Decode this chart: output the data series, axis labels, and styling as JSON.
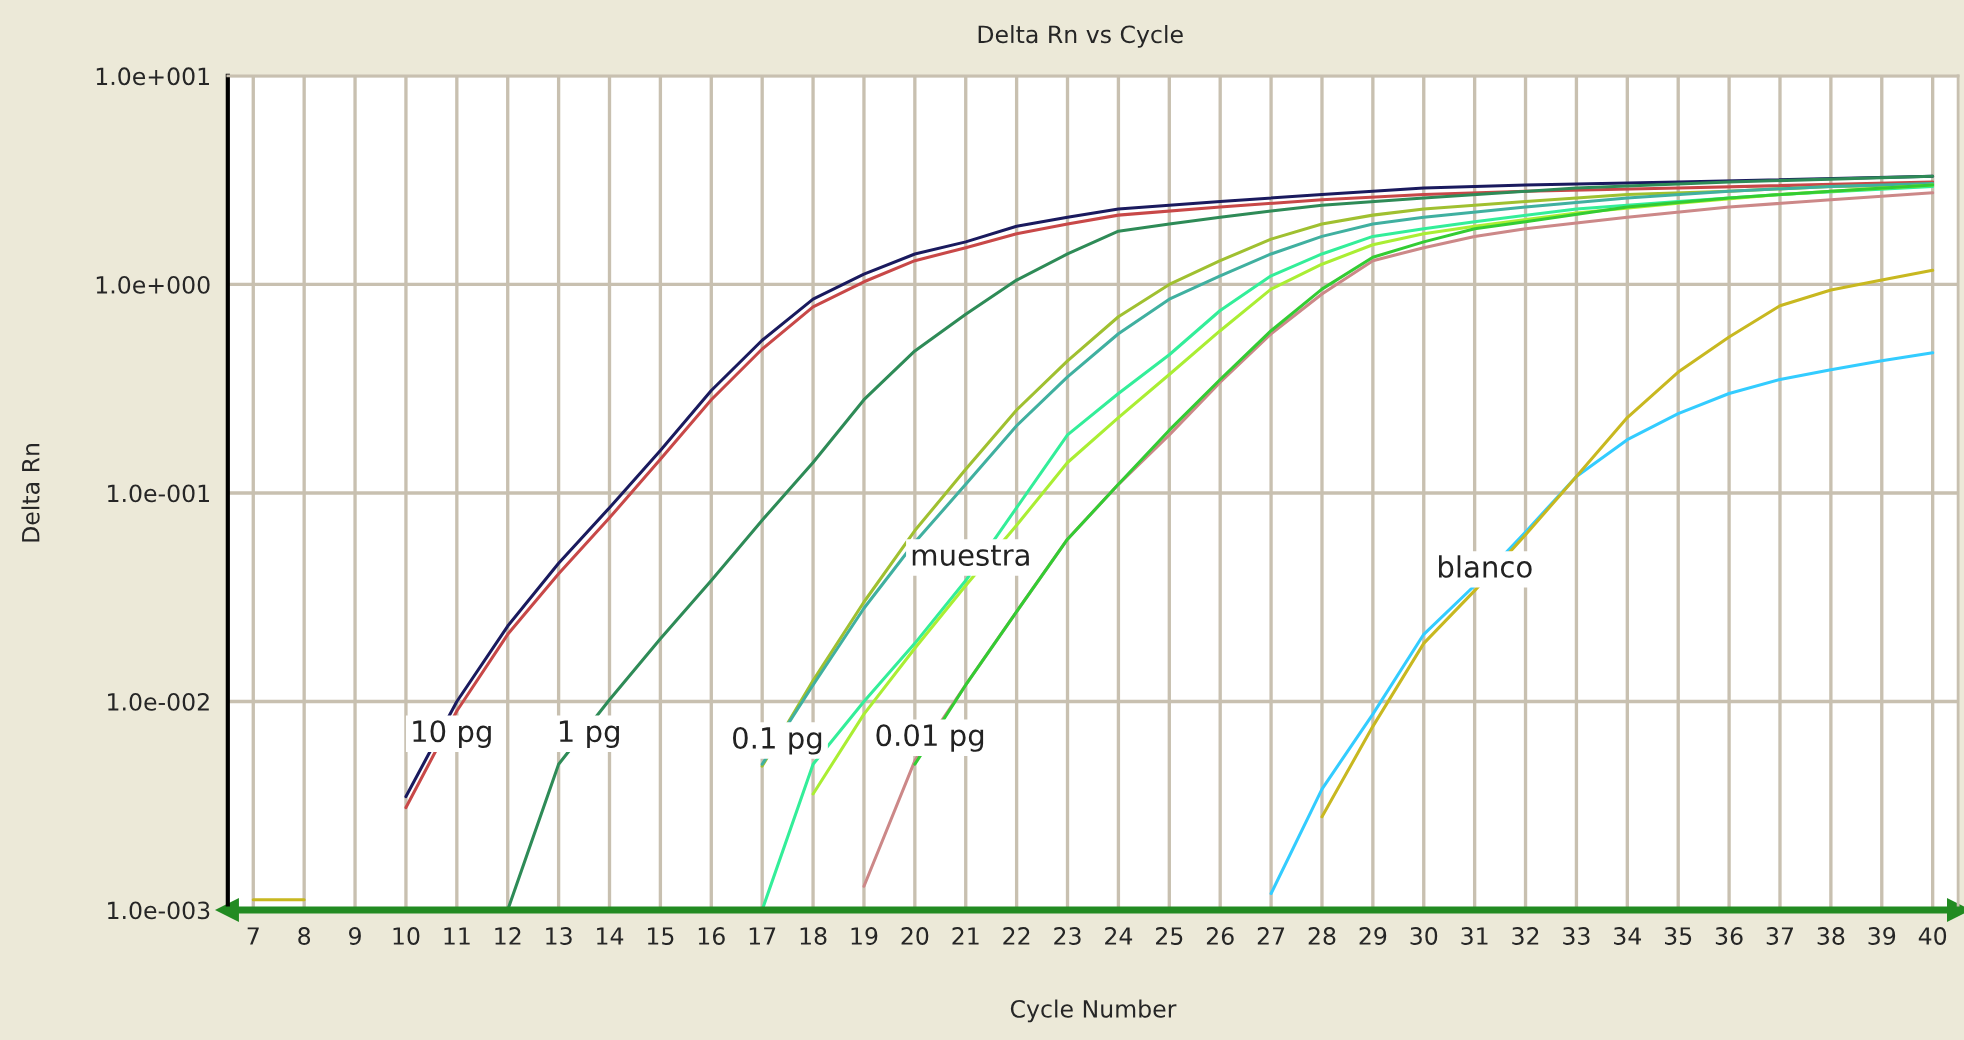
{
  "chart_data": {
    "type": "line",
    "title": "Delta Rn vs Cycle",
    "xlabel": "Cycle Number",
    "ylabel": "Delta Rn",
    "log": "y",
    "grid": true,
    "line_style": "solid",
    "xlim": [
      6.5,
      40.5
    ],
    "xticks": [
      7,
      8,
      9,
      10,
      11,
      12,
      13,
      14,
      15,
      16,
      17,
      18,
      19,
      20,
      21,
      22,
      23,
      24,
      25,
      26,
      27,
      28,
      29,
      30,
      31,
      32,
      33,
      34,
      35,
      36,
      37,
      38,
      39,
      40
    ],
    "ylim": [
      0.001,
      10
    ],
    "yticks": [
      {
        "value": 0.001,
        "label": "1.0e-003"
      },
      {
        "value": 0.01,
        "label": "1.0e-002"
      },
      {
        "value": 0.1,
        "label": "1.0e-001"
      },
      {
        "value": 1,
        "label": "1.0e+000"
      },
      {
        "value": 10,
        "label": "1.0e+001"
      }
    ],
    "series": [
      {
        "color": "#1a1a5e",
        "x": [
          10,
          11,
          12,
          13,
          14,
          15,
          16,
          17,
          18,
          19,
          20,
          21,
          22,
          23,
          24,
          26,
          28,
          30,
          32,
          35,
          40
        ],
        "values": [
          0.0035,
          0.01,
          0.023,
          0.046,
          0.085,
          0.16,
          0.31,
          0.54,
          0.85,
          1.12,
          1.4,
          1.6,
          1.9,
          2.1,
          2.3,
          2.5,
          2.7,
          2.9,
          3.0,
          3.1,
          3.3
        ]
      },
      {
        "color": "#c84848",
        "x": [
          10,
          11,
          12,
          13,
          14,
          15,
          16,
          17,
          18,
          19,
          20,
          21,
          22,
          23,
          24,
          26,
          28,
          30,
          32,
          35,
          40
        ],
        "values": [
          0.0031,
          0.009,
          0.021,
          0.041,
          0.076,
          0.145,
          0.28,
          0.49,
          0.78,
          1.03,
          1.3,
          1.5,
          1.75,
          1.95,
          2.15,
          2.35,
          2.55,
          2.7,
          2.8,
          2.9,
          3.1
        ]
      },
      {
        "color": "#2e8b57",
        "x": [
          12,
          13,
          14,
          15,
          16,
          17,
          18,
          19,
          20,
          21,
          22,
          23,
          24,
          25,
          26,
          27,
          28,
          30,
          33,
          36,
          40
        ],
        "values": [
          0.001,
          0.005,
          0.0102,
          0.02,
          0.038,
          0.074,
          0.14,
          0.28,
          0.48,
          0.72,
          1.05,
          1.4,
          1.8,
          1.95,
          2.1,
          2.25,
          2.4,
          2.6,
          2.9,
          3.1,
          3.3
        ]
      },
      {
        "color": "#a0c030",
        "x": [
          17,
          18,
          19,
          20,
          21,
          22,
          23,
          24,
          25,
          26,
          27,
          28,
          29,
          30,
          32,
          34,
          36,
          38,
          40
        ],
        "values": [
          0.0049,
          0.0126,
          0.03,
          0.066,
          0.13,
          0.25,
          0.43,
          0.7,
          1.0,
          1.3,
          1.65,
          1.95,
          2.15,
          2.3,
          2.5,
          2.7,
          2.8,
          2.95,
          3.0
        ]
      },
      {
        "color": "#40b0a0",
        "x": [
          17,
          18,
          19,
          20,
          21,
          22,
          23,
          24,
          25,
          26,
          27,
          28,
          29,
          30,
          32,
          34,
          36,
          38,
          40
        ],
        "values": [
          0.005,
          0.012,
          0.028,
          0.058,
          0.11,
          0.21,
          0.36,
          0.58,
          0.85,
          1.1,
          1.4,
          1.7,
          1.95,
          2.1,
          2.35,
          2.6,
          2.8,
          2.95,
          3.05
        ]
      },
      {
        "color": "#33ee99",
        "x": [
          17,
          18,
          19,
          20,
          21,
          22,
          23,
          24,
          25,
          26,
          27,
          28,
          29,
          30,
          31,
          33,
          35,
          37,
          40
        ],
        "values": [
          0.001,
          0.005,
          0.01,
          0.019,
          0.038,
          0.085,
          0.19,
          0.3,
          0.46,
          0.75,
          1.1,
          1.4,
          1.7,
          1.85,
          2.0,
          2.3,
          2.5,
          2.7,
          2.95
        ]
      },
      {
        "color": "#aaee33",
        "x": [
          18,
          19,
          20,
          21,
          22,
          23,
          24,
          25,
          26,
          27,
          28,
          29,
          30,
          31,
          33,
          35,
          37,
          40
        ],
        "values": [
          0.0036,
          0.0087,
          0.018,
          0.036,
          0.07,
          0.14,
          0.23,
          0.37,
          0.6,
          0.95,
          1.25,
          1.55,
          1.75,
          1.9,
          2.2,
          2.45,
          2.7,
          3.0
        ]
      },
      {
        "color": "#cc8888",
        "x": [
          19,
          20,
          21,
          22,
          23,
          24,
          25,
          26,
          27,
          28,
          29,
          30,
          31,
          32,
          34,
          36,
          38,
          40
        ],
        "values": [
          0.0013,
          0.0052,
          0.012,
          0.027,
          0.06,
          0.11,
          0.19,
          0.34,
          0.58,
          0.9,
          1.3,
          1.5,
          1.7,
          1.85,
          2.1,
          2.35,
          2.55,
          2.75
        ]
      },
      {
        "color": "#33cc33",
        "x": [
          20,
          21,
          22,
          23,
          24,
          25,
          26,
          27,
          28,
          29,
          30,
          31,
          32,
          34,
          36,
          38,
          40
        ],
        "values": [
          0.005,
          0.012,
          0.027,
          0.06,
          0.11,
          0.2,
          0.35,
          0.6,
          0.95,
          1.35,
          1.6,
          1.85,
          2.0,
          2.35,
          2.6,
          2.8,
          3.0
        ]
      },
      {
        "color": "#33ccff",
        "x": [
          27,
          28,
          29,
          30,
          31,
          32,
          33,
          34,
          35,
          36,
          37,
          38,
          39,
          40
        ],
        "values": [
          0.0012,
          0.0038,
          0.0087,
          0.021,
          0.036,
          0.065,
          0.12,
          0.18,
          0.24,
          0.3,
          0.35,
          0.39,
          0.43,
          0.47
        ]
      },
      {
        "color": "#c8b820",
        "x": [
          28,
          29,
          30,
          31,
          32,
          33,
          34,
          35,
          36,
          37,
          38,
          39,
          40
        ],
        "values": [
          0.0028,
          0.0076,
          0.019,
          0.034,
          0.063,
          0.12,
          0.23,
          0.38,
          0.56,
          0.79,
          0.94,
          1.05,
          1.17
        ]
      },
      {
        "color": "#c8b820",
        "x": [
          7,
          8
        ],
        "values": [
          0.00112,
          0.00112
        ]
      }
    ],
    "annotations": [
      {
        "text": "10 pg",
        "x": 10.9,
        "y": 0.007
      },
      {
        "text": "1 pg",
        "x": 13.6,
        "y": 0.007
      },
      {
        "text": "0.1 pg",
        "x": 17.3,
        "y": 0.0065
      },
      {
        "text": "muestra",
        "x": 21.1,
        "y": 0.049
      },
      {
        "text": "0.01 pg",
        "x": 20.3,
        "y": 0.0067
      },
      {
        "text": "blanco",
        "x": 31.2,
        "y": 0.043
      }
    ]
  }
}
